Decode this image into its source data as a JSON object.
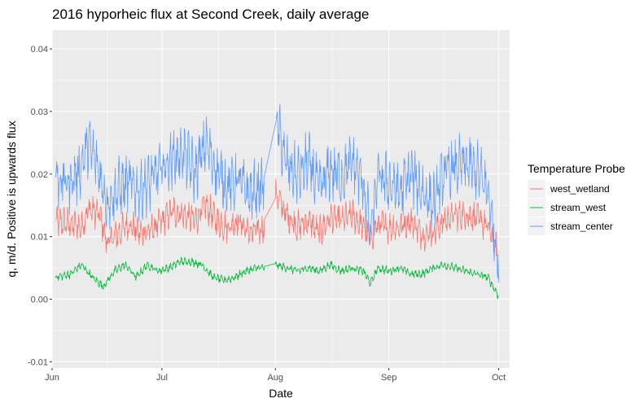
{
  "chart_data": {
    "type": "line",
    "title": "2016 hyporheic flux at Second Creek, daily average",
    "xlabel": "Date",
    "ylabel": "q, m/d. Positive is upwards flux",
    "xlim": [
      "2016-06-01",
      "2016-10-04"
    ],
    "ylim": [
      -0.011,
      0.043
    ],
    "x_ticks": [
      {
        "date": "2016-06-01",
        "label": "Jun"
      },
      {
        "date": "2016-07-01",
        "label": "Jul"
      },
      {
        "date": "2016-08-01",
        "label": "Aug"
      },
      {
        "date": "2016-09-01",
        "label": "Sep"
      },
      {
        "date": "2016-10-01",
        "label": "Oct"
      }
    ],
    "y_ticks": [
      {
        "value": -0.01,
        "label": "-0.01"
      },
      {
        "value": 0.0,
        "label": "0.00"
      },
      {
        "value": 0.01,
        "label": "0.01"
      },
      {
        "value": 0.02,
        "label": "0.02"
      },
      {
        "value": 0.03,
        "label": "0.03"
      },
      {
        "value": 0.04,
        "label": "0.04"
      }
    ],
    "grid": true,
    "legend": {
      "title": "Temperature Probe",
      "position": "right"
    },
    "series": [
      {
        "name": "west_wetland",
        "color": "#F8766D",
        "x": [
          "2016-06-02",
          "2016-06-06",
          "2016-06-09",
          "2016-06-11",
          "2016-06-14",
          "2016-06-16",
          "2016-06-19",
          "2016-06-22",
          "2016-06-25",
          "2016-06-28",
          "2016-07-01",
          "2016-07-04",
          "2016-07-07",
          "2016-07-10",
          "2016-07-13",
          "2016-07-16",
          "2016-07-19",
          "2016-07-22",
          "2016-07-25",
          "2016-07-29",
          "2016-08-01",
          "2016-08-04",
          "2016-08-07",
          "2016-08-10",
          "2016-08-13",
          "2016-08-16",
          "2016-08-19",
          "2016-08-22",
          "2016-08-25",
          "2016-08-27",
          "2016-08-29",
          "2016-09-01",
          "2016-09-04",
          "2016-09-07",
          "2016-09-10",
          "2016-09-13",
          "2016-09-16",
          "2016-09-19",
          "2016-09-22",
          "2016-09-25",
          "2016-09-28",
          "2016-10-01"
        ],
        "values": [
          0.0125,
          0.012,
          0.0115,
          0.0145,
          0.0135,
          0.009,
          0.0105,
          0.012,
          0.0105,
          0.011,
          0.0125,
          0.014,
          0.0135,
          0.0125,
          0.015,
          0.0125,
          0.0115,
          0.0125,
          0.0105,
          0.0115,
          0.017,
          0.0135,
          0.0115,
          0.0125,
          0.0105,
          0.013,
          0.0125,
          0.0135,
          0.0115,
          0.0095,
          0.012,
          0.0115,
          0.0115,
          0.0125,
          0.0105,
          0.0105,
          0.0125,
          0.0135,
          0.0135,
          0.013,
          0.0115,
          0.0075
        ]
      },
      {
        "name": "stream_west",
        "color": "#00BA38",
        "x": [
          "2016-06-02",
          "2016-06-06",
          "2016-06-09",
          "2016-06-12",
          "2016-06-15",
          "2016-06-18",
          "2016-06-21",
          "2016-06-24",
          "2016-06-27",
          "2016-06-30",
          "2016-07-03",
          "2016-07-06",
          "2016-07-09",
          "2016-07-12",
          "2016-07-15",
          "2016-07-18",
          "2016-07-21",
          "2016-07-24",
          "2016-07-27",
          "2016-07-30",
          "2016-08-01",
          "2016-08-04",
          "2016-08-07",
          "2016-08-10",
          "2016-08-13",
          "2016-08-16",
          "2016-08-19",
          "2016-08-22",
          "2016-08-25",
          "2016-08-27",
          "2016-08-29",
          "2016-09-01",
          "2016-09-04",
          "2016-09-07",
          "2016-09-10",
          "2016-09-13",
          "2016-09-16",
          "2016-09-19",
          "2016-09-22",
          "2016-09-25",
          "2016-09-28",
          "2016-10-01"
        ],
        "values": [
          0.0035,
          0.004,
          0.0055,
          0.0035,
          0.002,
          0.0045,
          0.0055,
          0.0035,
          0.0055,
          0.0045,
          0.005,
          0.006,
          0.006,
          0.0055,
          0.0035,
          0.003,
          0.0035,
          0.0045,
          0.005,
          0.005,
          0.0055,
          0.005,
          0.0045,
          0.005,
          0.0045,
          0.0055,
          0.0045,
          0.005,
          0.0045,
          0.0025,
          0.005,
          0.0045,
          0.005,
          0.004,
          0.004,
          0.005,
          0.0055,
          0.005,
          0.0045,
          0.004,
          0.0035,
          0.0005
        ]
      },
      {
        "name": "stream_center",
        "color": "#619CFF",
        "x": [
          "2016-06-02",
          "2016-06-05",
          "2016-06-08",
          "2016-06-11",
          "2016-06-14",
          "2016-06-16",
          "2016-06-19",
          "2016-06-22",
          "2016-06-25",
          "2016-06-28",
          "2016-07-01",
          "2016-07-04",
          "2016-07-07",
          "2016-07-10",
          "2016-07-13",
          "2016-07-16",
          "2016-07-19",
          "2016-07-22",
          "2016-07-25",
          "2016-07-29",
          "2016-08-01",
          "2016-08-04",
          "2016-08-07",
          "2016-08-10",
          "2016-08-13",
          "2016-08-16",
          "2016-08-19",
          "2016-08-22",
          "2016-08-25",
          "2016-08-27",
          "2016-08-29",
          "2016-09-01",
          "2016-09-04",
          "2016-09-07",
          "2016-09-10",
          "2016-09-13",
          "2016-09-16",
          "2016-09-19",
          "2016-09-22",
          "2016-09-25",
          "2016-09-28",
          "2016-10-01"
        ],
        "values": [
          0.0195,
          0.0185,
          0.02,
          0.025,
          0.02,
          0.0155,
          0.0175,
          0.0185,
          0.0175,
          0.019,
          0.021,
          0.0225,
          0.0235,
          0.02,
          0.025,
          0.0205,
          0.018,
          0.019,
          0.0165,
          0.0185,
          0.029,
          0.0215,
          0.0195,
          0.022,
          0.0175,
          0.0205,
          0.0195,
          0.022,
          0.0185,
          0.0105,
          0.0195,
          0.0185,
          0.017,
          0.02,
          0.0175,
          0.015,
          0.02,
          0.021,
          0.0215,
          0.0205,
          0.0175,
          0.0055
        ]
      }
    ]
  }
}
